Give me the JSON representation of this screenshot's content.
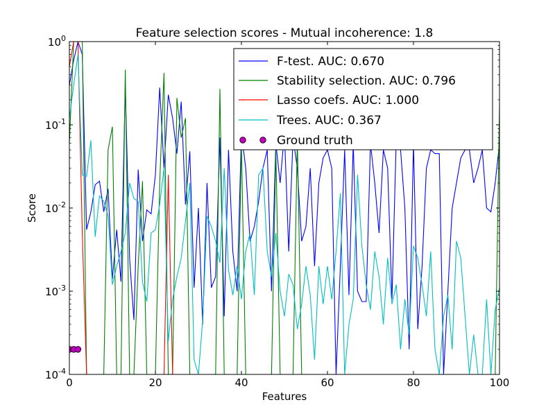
{
  "chart_data": {
    "type": "line",
    "title": "Feature selection scores - Mutual incoherence: 1.8",
    "xlabel": "Features",
    "ylabel": "Score",
    "xlim": [
      0,
      100
    ],
    "ylim": [
      0.0001,
      1
    ],
    "yscale": "log",
    "grid": false,
    "legend_position": "top-right",
    "x_ticks": [
      {
        "value": 0,
        "label": "0"
      },
      {
        "value": 20,
        "label": "20"
      },
      {
        "value": 40,
        "label": "40"
      },
      {
        "value": 60,
        "label": "60"
      },
      {
        "value": 80,
        "label": "80"
      },
      {
        "value": 100,
        "label": "100"
      }
    ],
    "y_ticks": [
      {
        "value": 0.0001,
        "base": "10",
        "exp": "-4"
      },
      {
        "value": 0.001,
        "base": "10",
        "exp": "-3"
      },
      {
        "value": 0.01,
        "base": "10",
        "exp": "-2"
      },
      {
        "value": 0.1,
        "base": "10",
        "exp": "-1"
      },
      {
        "value": 1,
        "base": "10",
        "exp": "0"
      }
    ],
    "x": [
      0,
      1,
      2,
      3,
      4,
      5,
      6,
      7,
      8,
      9,
      10,
      11,
      12,
      13,
      14,
      15,
      16,
      17,
      18,
      19,
      20,
      21,
      22,
      23,
      24,
      25,
      26,
      27,
      28,
      29,
      30,
      31,
      32,
      33,
      34,
      35,
      36,
      37,
      38,
      39,
      40,
      41,
      42,
      43,
      44,
      45,
      46,
      47,
      48,
      49,
      50,
      51,
      52,
      53,
      54,
      55,
      56,
      57,
      58,
      59,
      60,
      61,
      62,
      63,
      64,
      65,
      66,
      67,
      68,
      69,
      70,
      71,
      72,
      73,
      74,
      75,
      76,
      77,
      78,
      79,
      80,
      81,
      82,
      83,
      84,
      85,
      86,
      87,
      88,
      89,
      90,
      91,
      92,
      93,
      94,
      95,
      96,
      97,
      98,
      99,
      100
    ],
    "series": [
      {
        "name": "F-test. AUC: 0.670",
        "color": "#0000ff",
        "values": [
          0.3,
          0.6,
          1,
          0.7,
          0.0055,
          0.009,
          0.019,
          0.021,
          0.009,
          0.017,
          0.0014,
          0.0055,
          0.0013,
          0.3,
          0.0025,
          0.00045,
          0.029,
          0.004,
          0.0095,
          0.0085,
          0.025,
          0.28,
          0.03,
          0.23,
          0.12,
          0.045,
          0.19,
          0.011,
          0.048,
          0.0011,
          0.01,
          0.0004,
          0.02,
          0.0011,
          0.0015,
          0.07,
          0.0005,
          0.05,
          0.003,
          0.001,
          0.08,
          0.03,
          0.004,
          0.006,
          0.012,
          0.03,
          0.05,
          0.001,
          0.06,
          0.02,
          0.08,
          0.003,
          0.07,
          0.03,
          0.004,
          0.006,
          0.03,
          0.002,
          0.02,
          0.04,
          0.05,
          0.03,
          0.0001,
          0.002,
          0.05,
          0.0009,
          0.06,
          0.001,
          0.00075,
          0.00075,
          0.06,
          0.02,
          0.005,
          0.05,
          0.03,
          0.0008,
          0.07,
          0.05,
          0.01,
          0.0002,
          0.06,
          0.00035,
          0.002,
          0.03,
          0.05,
          0.045,
          0.045,
          0.0001,
          0.001,
          0.01,
          0.02,
          0.04,
          0.05,
          0.05,
          0.02,
          0.03,
          0.05,
          0.01,
          0.009,
          0.02,
          0.06
        ]
      },
      {
        "name": "Stability selection. AUC: 0.796",
        "color": "#008000",
        "values": [
          0.06,
          1,
          1,
          1,
          0.0001,
          0.0001,
          0.0001,
          0.0001,
          0.0001,
          0.05,
          0.095,
          0.0001,
          0.0001,
          0.46,
          0.0001,
          0.0001,
          0.002,
          0.021,
          0.0001,
          0.0001,
          0.0001,
          0.02,
          0.42,
          0.0001,
          0.0001,
          0.21,
          0.07,
          0.12,
          0.0001,
          0.0001,
          0.0001,
          0.0001,
          0.0001,
          0.0001,
          0.0001,
          0.27,
          0.0001,
          0.0001,
          0.0001,
          0.0001,
          0.06,
          0.0001,
          0.0001,
          0.0001,
          0.0001,
          0.0001,
          0.0001,
          0.0001,
          0.05,
          0.0001,
          0.0001,
          0.0001,
          0.0001,
          0.07,
          0.0001,
          0.0001,
          0.0001,
          0.0001,
          0.0001,
          0.0001,
          0.0001,
          0.0001,
          0.0001,
          0.0001,
          0.0001,
          0.0001,
          0.0001,
          0.0001,
          0.0001,
          0.0001,
          0.0001,
          0.0001,
          0.0001,
          0.0001,
          0.0001,
          0.0001,
          0.0001,
          0.0001,
          0.0001,
          0.0001,
          0.0001,
          0.0001,
          0.0001,
          0.0001,
          0.0001,
          0.0001,
          0.0001,
          0.0001,
          0.0001,
          0.0001,
          0.0001,
          0.0001,
          0.0001,
          0.0001,
          0.0001,
          0.0001,
          0.0001,
          0.0001,
          0.0001,
          0.0001,
          0.17
        ]
      },
      {
        "name": "Lasso coefs. AUC: 1.000",
        "color": "#ff0000",
        "values": [
          0.5,
          1,
          1,
          0.005,
          0.0001,
          0.0001,
          0.0001,
          0.0001,
          0.0001,
          0.0001,
          0.0001,
          0.0001,
          0.0001,
          0.0001,
          0.0001,
          0.0001,
          0.0001,
          0.0001,
          0.0001,
          0.0001,
          0.0001,
          0.0001,
          0.0001,
          0.025,
          0.0001,
          0.0001,
          0.0001,
          0.0001,
          0.0001,
          0.0001,
          0.0001,
          0.0001,
          0.0001,
          0.0001,
          0.0001,
          0.0001,
          0.0001,
          0.0001,
          0.0001,
          0.0001,
          0.0001,
          0.0001,
          0.0001,
          0.0001,
          0.0001,
          0.0001,
          0.0001,
          0.0001,
          0.0001,
          0.0001,
          0.0001,
          0.0001,
          0.0001,
          0.0001,
          0.0001,
          0.0001,
          0.0001,
          0.0001,
          0.0001,
          0.0001,
          0.0001,
          0.0001,
          0.0001,
          0.0001,
          0.0001,
          0.0001,
          0.0001,
          0.0001,
          0.0001,
          0.0001,
          0.0001,
          0.0001,
          0.0001,
          0.0001,
          0.0001,
          0.0001,
          0.0001,
          0.0001,
          0.0001,
          0.0001,
          0.0001,
          0.0001,
          0.0001,
          0.0001,
          0.0001,
          0.0001,
          0.0001,
          0.0001,
          0.0001,
          0.0001,
          0.0001,
          0.0001,
          0.0001,
          0.0001,
          0.0001,
          0.0001,
          0.0001,
          0.0001,
          0.0001,
          0.0001,
          0.0001
        ]
      },
      {
        "name": "Trees. AUC: 0.367",
        "color": "#00bfbf",
        "values": [
          0.12,
          0.3,
          0.7,
          0.025,
          0.024,
          0.065,
          0.0045,
          0.014,
          0.012,
          0.008,
          0.0012,
          0.002,
          0.003,
          0.005,
          0.02,
          0.013,
          0.012,
          0.0013,
          0.00075,
          0.005,
          0.0055,
          0.011,
          0.03,
          0.00025,
          0.0008,
          0.0015,
          0.0025,
          0.007,
          0.02,
          0.00015,
          0.0001,
          0.00045,
          0.008,
          0.006,
          0.004,
          0.0022,
          0.03,
          0.0018,
          0.0009,
          0.002,
          0.0008,
          0.003,
          0.005,
          0.0009,
          0.025,
          0.03,
          0.003,
          0.0015,
          0.005,
          0.001,
          0.0005,
          0.0016,
          0.0012,
          0.00035,
          0.0007,
          0.002,
          0.0009,
          0.00015,
          0.002,
          0.0007,
          0.002,
          0.0008,
          0.003,
          0.015,
          0.0001,
          0.0004,
          0.0008,
          0.025,
          0.0035,
          0.0012,
          0.0006,
          0.003,
          0.0015,
          0.0004,
          0.0025,
          0.0007,
          0.0012,
          0.0002,
          0.0008,
          0.0003,
          0.0035,
          0.0025,
          0.0012,
          0.0005,
          0.003,
          0.0002,
          0.0001,
          0.0005,
          0.0009,
          0.0002,
          0.004,
          0.0025,
          0.0005,
          0.0001,
          0.0003,
          0.0001,
          0.0001,
          0.0008,
          0.0001,
          0.0006,
          0.0011
        ]
      }
    ],
    "ground_truth": {
      "name": "Ground truth",
      "color": "#bf00bf",
      "x": [
        0,
        1,
        2
      ],
      "y": [
        0.0002,
        0.0002,
        0.0002
      ]
    }
  }
}
